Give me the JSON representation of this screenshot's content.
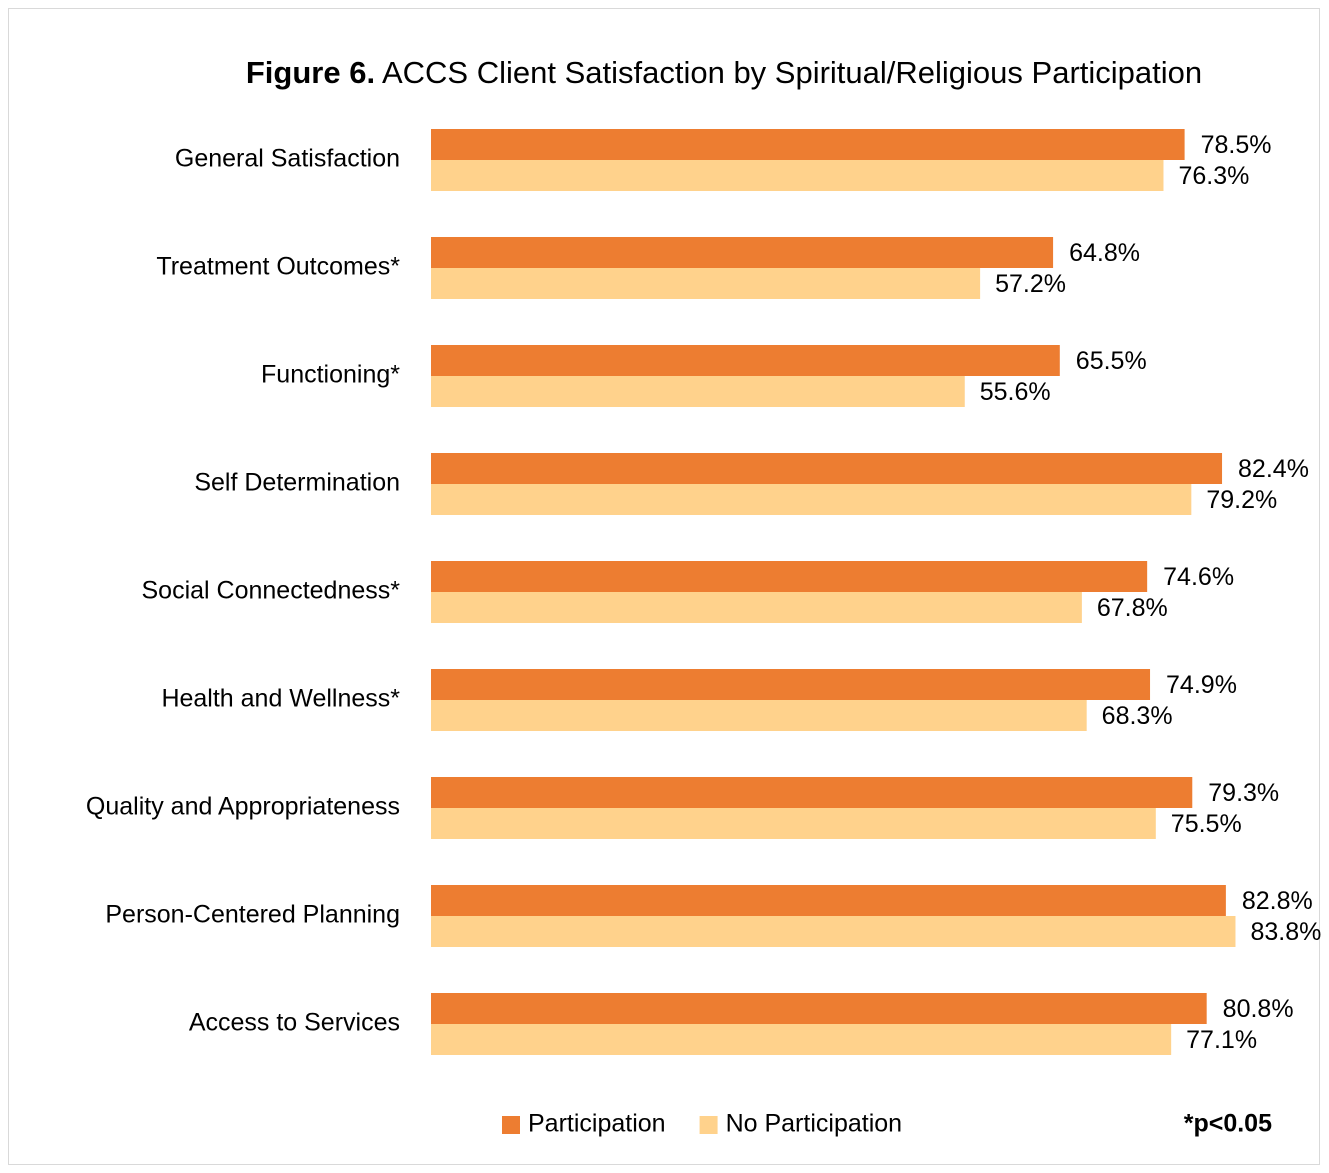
{
  "chart_data": {
    "type": "hbar",
    "figure_label": "Figure 6.",
    "title": "ACCS Client Satisfaction by Spiritual/Religious Participation",
    "annotation": "*p<0.05",
    "categories": [
      "General Satisfaction",
      "Treatment Outcomes*",
      "Functioning*",
      "Self Determination",
      "Social Connectedness*",
      "Health and Wellness*",
      "Quality and Appropriateness",
      "Person-Centered Planning",
      "Access to Services"
    ],
    "series": [
      {
        "name": "Participation",
        "color": "#ED7D31",
        "values": [
          78.5,
          64.8,
          65.5,
          82.4,
          74.6,
          74.9,
          79.3,
          82.8,
          80.8
        ],
        "value_labels": [
          "78.5%",
          "64.8%",
          "65.5%",
          "82.4%",
          "74.6%",
          "74.9%",
          "79.3%",
          "82.8%",
          "80.8%"
        ]
      },
      {
        "name": "No Participation",
        "color": "#FFD28C",
        "values": [
          76.3,
          57.2,
          55.6,
          79.2,
          67.8,
          68.3,
          75.5,
          83.8,
          77.1
        ],
        "value_labels": [
          "76.3%",
          "57.2%",
          "55.6%",
          "79.2%",
          "67.8%",
          "68.3%",
          "75.5%",
          "83.8%",
          "77.1%"
        ]
      }
    ],
    "legend": "bottom"
  }
}
